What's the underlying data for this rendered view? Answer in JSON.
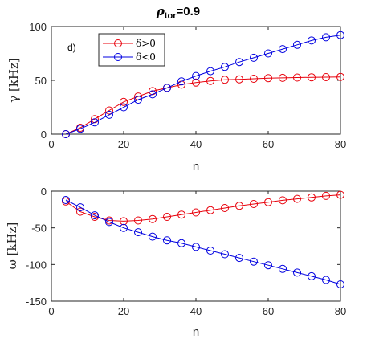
{
  "figure": {
    "title_main": "ρ",
    "title_sub": "tor",
    "title_value": "=0.9"
  },
  "chart_data": [
    {
      "type": "line",
      "panel_label": "d)",
      "xlabel": "n",
      "ylabel": "γ [kHz]",
      "xlim": [
        0,
        80
      ],
      "ylim": [
        0,
        100
      ],
      "xticks": [
        0,
        20,
        40,
        60,
        80
      ],
      "yticks": [
        0,
        50,
        100
      ],
      "grid": false,
      "legend_position": "top-left-inside",
      "x": [
        4,
        8,
        12,
        16,
        20,
        24,
        28,
        32,
        36,
        40,
        44,
        48,
        52,
        56,
        60,
        64,
        68,
        72,
        76,
        80
      ],
      "series": [
        {
          "name": "δ>0",
          "color": "#e8000b",
          "values": [
            0,
            6,
            14,
            22,
            30,
            35,
            40,
            43,
            46,
            48,
            49.5,
            50.5,
            51,
            51.5,
            52,
            52.3,
            52.6,
            52.8,
            53,
            53.2
          ]
        },
        {
          "name": "δ<0",
          "color": "#0000e0",
          "values": [
            0,
            5,
            11,
            18,
            25,
            32,
            37,
            43,
            49,
            54,
            58.5,
            62.5,
            67,
            71,
            75,
            79,
            83,
            87,
            90,
            92
          ]
        }
      ]
    },
    {
      "type": "line",
      "xlabel": "n",
      "ylabel": "ω [kHz]",
      "xlim": [
        0,
        80
      ],
      "ylim": [
        -150,
        0
      ],
      "xticks": [
        0,
        20,
        40,
        60,
        80
      ],
      "yticks": [
        -150,
        -100,
        -50,
        0
      ],
      "grid": false,
      "x": [
        4,
        8,
        12,
        16,
        20,
        24,
        28,
        32,
        36,
        40,
        44,
        48,
        52,
        56,
        60,
        64,
        68,
        72,
        76,
        80
      ],
      "series": [
        {
          "color": "#e8000b",
          "values": [
            -14,
            -28,
            -35,
            -40,
            -41,
            -40,
            -38,
            -35,
            -32,
            -29,
            -26,
            -23,
            -20,
            -17.5,
            -15,
            -12.5,
            -10.5,
            -8.5,
            -6.5,
            -5
          ]
        },
        {
          "color": "#0000e0",
          "values": [
            -12,
            -22,
            -33,
            -42,
            -50,
            -56,
            -62,
            -67,
            -71,
            -76,
            -81,
            -86,
            -91,
            -96,
            -101,
            -106,
            -111,
            -116,
            -121,
            -127
          ]
        }
      ]
    }
  ]
}
